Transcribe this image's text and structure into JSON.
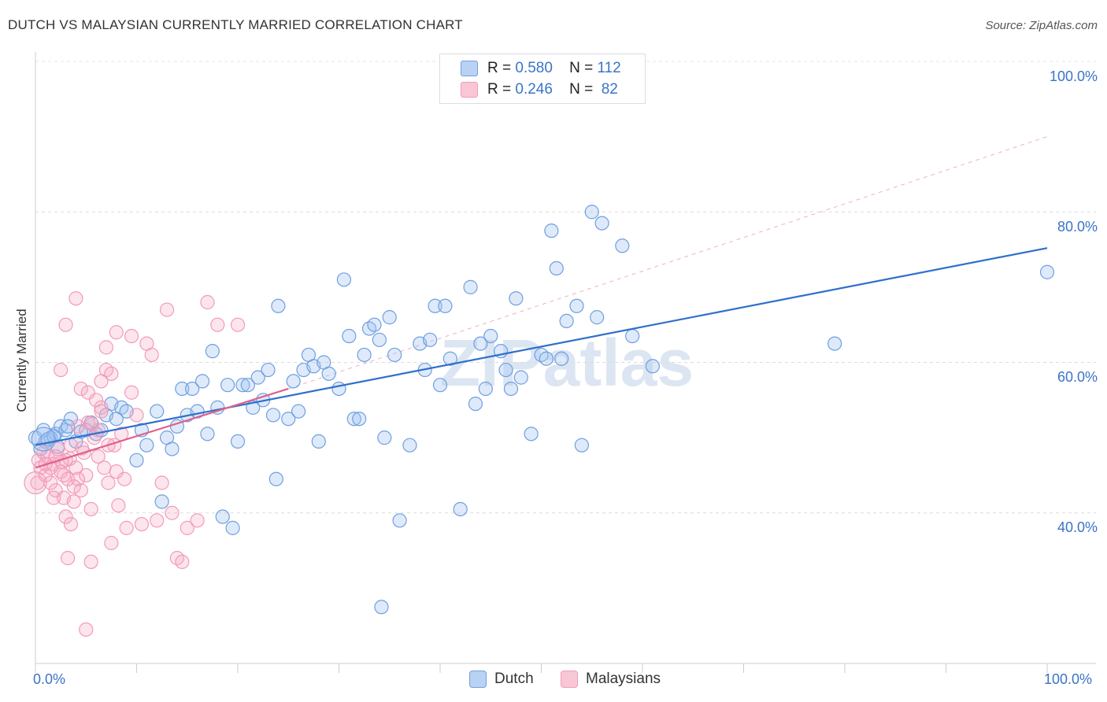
{
  "title": "DUTCH VS MALAYSIAN CURRENTLY MARRIED CORRELATION CHART",
  "source": "Source: ZipAtlas.com",
  "chart_data": {
    "type": "scatter",
    "ylabel": "Currently Married",
    "xlim": [
      0,
      100
    ],
    "ylim": [
      20,
      100
    ],
    "x_tick_labels": [
      "0.0%",
      "100.0%"
    ],
    "y_ticks": [
      40,
      60,
      80,
      100
    ],
    "y_tick_labels": [
      "40.0%",
      "60.0%",
      "80.0%",
      "100.0%"
    ],
    "legend": [
      {
        "r_label": "R =",
        "r_value": "0.580",
        "n_label": "N =",
        "n_value": "112"
      },
      {
        "r_label": "R =",
        "r_value": "0.246",
        "n_label": "N =",
        "n_value": "82"
      }
    ],
    "series": [
      {
        "name": "Dutch",
        "color": "#6f9fe0",
        "line_color": "#2f6fcc",
        "trend": {
          "x": [
            0,
            100
          ],
          "y": [
            49.0,
            75.2
          ]
        },
        "points": [
          [
            2,
            50.5
          ],
          [
            2.5,
            51.5
          ],
          [
            3,
            51
          ],
          [
            3.5,
            52.5
          ],
          [
            4,
            49.5
          ],
          [
            5,
            51
          ],
          [
            5.5,
            52
          ],
          [
            6,
            50.5
          ],
          [
            6.5,
            51
          ],
          [
            7,
            53
          ],
          [
            7.5,
            54.5
          ],
          [
            8,
            52.5
          ],
          [
            8.5,
            54
          ],
          [
            9,
            53.5
          ],
          [
            10,
            47
          ],
          [
            10.5,
            51
          ],
          [
            11,
            49
          ],
          [
            12,
            53.5
          ],
          [
            12.5,
            41.5
          ],
          [
            13,
            50
          ],
          [
            13.5,
            48.5
          ],
          [
            14,
            51.5
          ],
          [
            14.5,
            56.5
          ],
          [
            15,
            53
          ],
          [
            15.5,
            56.5
          ],
          [
            16,
            53.5
          ],
          [
            16.5,
            57.5
          ],
          [
            17,
            50.5
          ],
          [
            17.5,
            61.5
          ],
          [
            18,
            54
          ],
          [
            18.5,
            39.5
          ],
          [
            19,
            57
          ],
          [
            19.5,
            38
          ],
          [
            20,
            49.5
          ],
          [
            20.5,
            57
          ],
          [
            21,
            57
          ],
          [
            21.5,
            54
          ],
          [
            22,
            58
          ],
          [
            22.5,
            55
          ],
          [
            23,
            59
          ],
          [
            23.5,
            53
          ],
          [
            24,
            67.5
          ],
          [
            25,
            52.5
          ],
          [
            25.5,
            57.5
          ],
          [
            26,
            53.5
          ],
          [
            26.5,
            59
          ],
          [
            27,
            61
          ],
          [
            27.5,
            59.5
          ],
          [
            28,
            49.5
          ],
          [
            28.5,
            60
          ],
          [
            29,
            58.5
          ],
          [
            30,
            56.5
          ],
          [
            30.5,
            71
          ],
          [
            31,
            63.5
          ],
          [
            31.5,
            52.5
          ],
          [
            32,
            52.5
          ],
          [
            32.5,
            61
          ],
          [
            33,
            64.5
          ],
          [
            33.5,
            65
          ],
          [
            34,
            63
          ],
          [
            34.5,
            50
          ],
          [
            35,
            66
          ],
          [
            35.5,
            61
          ],
          [
            36,
            39
          ],
          [
            37,
            49
          ],
          [
            38,
            62.5
          ],
          [
            38.5,
            59
          ],
          [
            39,
            63
          ],
          [
            39.5,
            67.5
          ],
          [
            40,
            57
          ],
          [
            40.5,
            67.5
          ],
          [
            41,
            60.5
          ],
          [
            42,
            40.5
          ],
          [
            43,
            70
          ],
          [
            43.5,
            54.5
          ],
          [
            44,
            62.5
          ],
          [
            44.5,
            56.5
          ],
          [
            45,
            63.5
          ],
          [
            46,
            61.5
          ],
          [
            46.5,
            59
          ],
          [
            47,
            56.5
          ],
          [
            47.5,
            68.5
          ],
          [
            48,
            58
          ],
          [
            49,
            50.5
          ],
          [
            50,
            61
          ],
          [
            50.5,
            60.5
          ],
          [
            51,
            77.5
          ],
          [
            51.5,
            72.5
          ],
          [
            52,
            60.5
          ],
          [
            52.5,
            65.5
          ],
          [
            53.5,
            67.5
          ],
          [
            54,
            49
          ],
          [
            55,
            80
          ],
          [
            55.5,
            66
          ],
          [
            56,
            78.5
          ],
          [
            58,
            75.5
          ],
          [
            59,
            63.5
          ],
          [
            61,
            59.5
          ],
          [
            79,
            62.5
          ],
          [
            100,
            72
          ],
          [
            34.2,
            27.5
          ],
          [
            23.8,
            44.5
          ],
          [
            0,
            50.0
          ],
          [
            1,
            49.5
          ],
          [
            0.5,
            48.5
          ],
          [
            1.5,
            50
          ],
          [
            0.8,
            51
          ],
          [
            1.2,
            49.8
          ],
          [
            2.2,
            48.8
          ],
          [
            3.2,
            51.5
          ],
          [
            4.5,
            50.8
          ],
          [
            1.8,
            50.2
          ]
        ]
      },
      {
        "name": "Malaysians",
        "color": "#f29bb8",
        "line_color": "#e0608c",
        "trend": {
          "x": [
            0,
            25
          ],
          "y": [
            46.0,
            56.5
          ]
        },
        "points": [
          [
            0.3,
            47
          ],
          [
            0.5,
            46
          ],
          [
            0.8,
            48
          ],
          [
            1,
            45
          ],
          [
            1.2,
            47.5
          ],
          [
            1.5,
            44
          ],
          [
            1.8,
            46.5
          ],
          [
            2,
            43
          ],
          [
            2.2,
            48.5
          ],
          [
            2.5,
            45.5
          ],
          [
            2.8,
            42
          ],
          [
            3,
            47
          ],
          [
            3.2,
            44.5
          ],
          [
            3.5,
            49
          ],
          [
            3.8,
            41.5
          ],
          [
            4,
            46
          ],
          [
            4.2,
            51.5
          ],
          [
            4.5,
            43
          ],
          [
            4.8,
            48
          ],
          [
            5,
            45
          ],
          [
            5.2,
            52
          ],
          [
            5.5,
            40.5
          ],
          [
            5.8,
            50
          ],
          [
            6,
            55
          ],
          [
            6.2,
            47.5
          ],
          [
            6.5,
            53.5
          ],
          [
            6.8,
            46
          ],
          [
            7,
            59
          ],
          [
            7.2,
            44
          ],
          [
            7.5,
            58.5
          ],
          [
            7.8,
            49
          ],
          [
            8,
            64
          ],
          [
            8.2,
            41
          ],
          [
            8.5,
            50.5
          ],
          [
            8.8,
            44.5
          ],
          [
            9,
            38
          ],
          [
            9.5,
            63.5
          ],
          [
            10,
            53
          ],
          [
            10.5,
            38.5
          ],
          [
            11,
            62.5
          ],
          [
            11.5,
            61
          ],
          [
            12,
            39
          ],
          [
            12.5,
            44
          ],
          [
            13,
            67
          ],
          [
            13.5,
            40
          ],
          [
            14,
            34
          ],
          [
            14.5,
            33.5
          ],
          [
            15,
            38
          ],
          [
            16,
            39
          ],
          [
            17,
            68
          ],
          [
            18,
            65
          ],
          [
            20,
            65
          ],
          [
            3,
            39.5
          ],
          [
            3.5,
            38.5
          ],
          [
            3.2,
            34
          ],
          [
            5.5,
            33.5
          ],
          [
            5,
            24.5
          ],
          [
            7.5,
            36
          ],
          [
            4,
            68.5
          ],
          [
            3,
            65
          ],
          [
            2.5,
            59
          ],
          [
            4.5,
            56.5
          ],
          [
            5.2,
            56
          ],
          [
            6.5,
            54
          ],
          [
            9.5,
            56
          ],
          [
            1.5,
            46
          ],
          [
            2,
            47.5
          ],
          [
            1,
            46.5
          ],
          [
            0.2,
            44
          ],
          [
            2.8,
            45
          ],
          [
            4.2,
            44.5
          ],
          [
            3.8,
            43.5
          ],
          [
            1.8,
            42
          ],
          [
            6.2,
            51
          ],
          [
            7.2,
            49
          ],
          [
            8,
            45.5
          ],
          [
            6.5,
            57.5
          ],
          [
            7,
            62
          ],
          [
            5.6,
            51.8
          ],
          [
            4.6,
            48.6
          ],
          [
            3.4,
            47.2
          ],
          [
            2.6,
            46.8
          ]
        ]
      }
    ]
  },
  "bottom_legend": [
    {
      "label": "Dutch",
      "color": "#b9d2f3"
    },
    {
      "label": "Malaysians",
      "color": "#f9c6d6"
    }
  ],
  "watermark": "ZIPatlas"
}
